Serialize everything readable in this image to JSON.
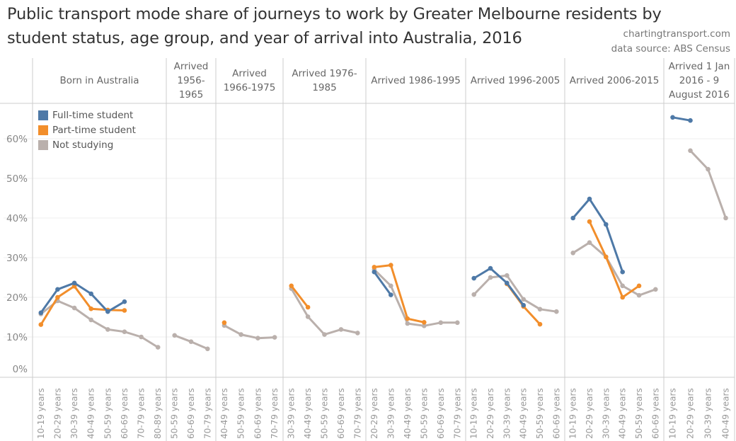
{
  "chart_data": {
    "type": "line",
    "title": "Public transport mode share of journeys to work by Greater Melbourne residents by student status, age group, and year of arrival into Australia, 2016",
    "title_lines": [
      "Public transport mode share of journeys to work by Greater Melbourne residents by",
      "student status, age group, and year of arrival into Australia, 2016"
    ],
    "credits": [
      "chartingtransport.com",
      "data source: ABS Census"
    ],
    "ylabel": "",
    "xlabel": "",
    "ylim": [
      0,
      70
    ],
    "yticks": [
      0,
      10,
      20,
      30,
      40,
      50,
      60
    ],
    "ytick_labels": [
      "0%",
      "10%",
      "20%",
      "30%",
      "40%",
      "50%",
      "60%"
    ],
    "grid": true,
    "legend_position": "top-left",
    "series_styles": [
      {
        "name": "Full-time student",
        "color": "#4e79a7"
      },
      {
        "name": "Part-time student",
        "color": "#f28e2b"
      },
      {
        "name": "Not studying",
        "color": "#bab0ac"
      }
    ],
    "panels": [
      {
        "header": "Born in Australia",
        "categories": [
          "10-19 years",
          "20-29 years",
          "30-39 years",
          "40-49 years",
          "50-59 years",
          "60-69 years",
          "70-79 years",
          "80-89 years"
        ],
        "series": [
          {
            "name": "Full-time student",
            "values": [
              16.1,
              22.0,
              23.6,
              20.9,
              16.4,
              18.9,
              null,
              null
            ]
          },
          {
            "name": "Part-time student",
            "values": [
              13.1,
              20.0,
              22.8,
              17.1,
              16.8,
              16.7,
              null,
              null
            ]
          },
          {
            "name": "Not studying",
            "values": [
              15.8,
              19.1,
              17.3,
              14.3,
              11.9,
              11.3,
              10.0,
              7.4
            ]
          }
        ]
      },
      {
        "header": "Arrived 1956-1965",
        "categories": [
          "50-59 years",
          "60-69 years",
          "70-79 years"
        ],
        "series": [
          {
            "name": "Full-time student",
            "values": [
              null,
              null,
              null
            ]
          },
          {
            "name": "Part-time student",
            "values": [
              null,
              null,
              null
            ]
          },
          {
            "name": "Not studying",
            "values": [
              10.4,
              8.8,
              7.0
            ]
          }
        ]
      },
      {
        "header": "Arrived 1966-1975",
        "categories": [
          "40-49 years",
          "50-59 years",
          "60-69 years",
          "70-79 years"
        ],
        "series": [
          {
            "name": "Full-time student",
            "values": [
              null,
              null,
              null,
              null
            ]
          },
          {
            "name": "Part-time student",
            "values": [
              13.6,
              null,
              null,
              null
            ]
          },
          {
            "name": "Not studying",
            "values": [
              12.9,
              10.6,
              9.7,
              9.9
            ]
          }
        ]
      },
      {
        "header": "Arrived 1976-1985",
        "categories": [
          "30-39 years",
          "40-49 years",
          "50-59 years",
          "60-69 years",
          "70-79 years"
        ],
        "series": [
          {
            "name": "Full-time student",
            "values": [
              null,
              null,
              null,
              null,
              null
            ]
          },
          {
            "name": "Part-time student",
            "values": [
              22.9,
              17.5,
              null,
              null,
              null
            ]
          },
          {
            "name": "Not studying",
            "values": [
              22.2,
              15.1,
              10.6,
              11.9,
              11.0
            ]
          }
        ]
      },
      {
        "header": "Arrived 1986-1995",
        "categories": [
          "20-29 years",
          "30-39 years",
          "40-49 years",
          "50-59 years",
          "60-69 years",
          "70-79 years"
        ],
        "series": [
          {
            "name": "Full-time student",
            "values": [
              26.4,
              20.6,
              null,
              null,
              null,
              null
            ]
          },
          {
            "name": "Part-time student",
            "values": [
              27.6,
              28.1,
              14.6,
              13.7,
              null,
              null
            ]
          },
          {
            "name": "Not studying",
            "values": [
              27.0,
              22.9,
              13.4,
              12.8,
              13.6,
              13.6
            ]
          }
        ]
      },
      {
        "header": "Arrived 1996-2005",
        "categories": [
          "10-19 years",
          "20-29 years",
          "30-39 years",
          "40-49 years",
          "50-59 years",
          "60-69 years"
        ],
        "series": [
          {
            "name": "Full-time student",
            "values": [
              24.8,
              27.3,
              23.6,
              18.0,
              null,
              null
            ]
          },
          {
            "name": "Part-time student",
            "values": [
              null,
              null,
              23.4,
              17.7,
              13.2,
              null
            ]
          },
          {
            "name": "Not studying",
            "values": [
              20.7,
              25.0,
              25.5,
              19.5,
              17.0,
              16.4
            ]
          }
        ]
      },
      {
        "header": "Arrived 2006-2015",
        "categories": [
          "10-19 years",
          "20-29 years",
          "30-39 years",
          "40-49 years",
          "50-59 years",
          "60-69 years"
        ],
        "series": [
          {
            "name": "Full-time student",
            "values": [
              40.0,
              44.8,
              38.4,
              26.4,
              null,
              null
            ]
          },
          {
            "name": "Part-time student",
            "values": [
              null,
              39.1,
              30.2,
              20.0,
              22.9,
              null
            ]
          },
          {
            "name": "Not studying",
            "values": [
              31.2,
              33.8,
              30.2,
              22.9,
              20.5,
              22.0
            ]
          }
        ]
      },
      {
        "header": "Arrived 1 Jan 2016 - 9 August 2016",
        "categories": [
          "10-19 years",
          "20-29 years",
          "30-39 years",
          "40-49 years"
        ],
        "series": [
          {
            "name": "Full-time student",
            "values": [
              65.4,
              64.6,
              null,
              null
            ]
          },
          {
            "name": "Part-time student",
            "values": [
              null,
              null,
              null,
              null
            ]
          },
          {
            "name": "Not studying",
            "values": [
              null,
              57.0,
              52.3,
              40.0
            ]
          }
        ]
      }
    ]
  }
}
